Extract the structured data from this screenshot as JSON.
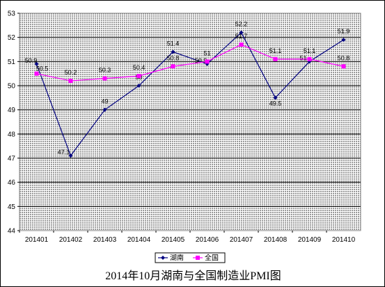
{
  "chart_data": {
    "type": "line",
    "title": "2014年10月湖南与全国制造业PMI图",
    "categories": [
      "201401",
      "201402",
      "201403",
      "201404",
      "201405",
      "201406",
      "201407",
      "201408",
      "201409",
      "201410"
    ],
    "series": [
      {
        "name": "湖南",
        "color": "#000080",
        "marker": "diamond",
        "values": [
          50.9,
          47.1,
          49,
          50,
          51.4,
          50.9,
          52.2,
          49.5,
          51,
          51.9
        ],
        "labels": [
          "50.9",
          "47.1",
          "49",
          "50",
          "51.4",
          "50.9",
          "52.2",
          "49.5",
          "51",
          "51.9"
        ]
      },
      {
        "name": "全国",
        "color": "#FF00FF",
        "marker": "square",
        "values": [
          50.5,
          50.2,
          50.3,
          50.4,
          50.8,
          51,
          51.7,
          51.1,
          51.1,
          50.8
        ],
        "labels": [
          "50.5",
          "50.2",
          "50.3",
          "50.4",
          "50.8",
          "51",
          "51.7",
          "51.1",
          "51.1",
          "50.8"
        ]
      }
    ],
    "ylim": [
      44,
      53
    ],
    "yticks": [
      "44",
      "45",
      "46",
      "47",
      "48",
      "49",
      "50",
      "51",
      "52",
      "53"
    ],
    "grid": true,
    "legend_position": "bottom-center",
    "plot_background": "#C0C0C0"
  }
}
